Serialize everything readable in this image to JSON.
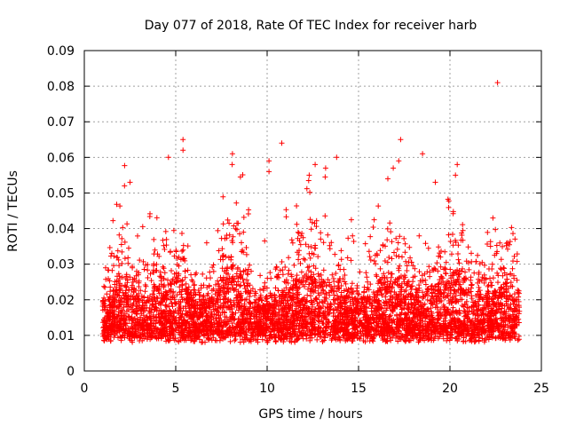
{
  "chart_data": {
    "type": "scatter",
    "title": "Day 077 of 2018, Rate Of TEC Index for receiver harb",
    "xlabel": "GPS time / hours",
    "ylabel": "ROTI / TECUs",
    "xlim": [
      0,
      25
    ],
    "ylim": [
      0,
      0.09
    ],
    "x_ticks": [
      "0",
      "5",
      "10",
      "15",
      "20",
      "25"
    ],
    "y_ticks": [
      "0",
      "0.01",
      "0.02",
      "0.03",
      "0.04",
      "0.05",
      "0.06",
      "0.07",
      "0.08",
      "0.09"
    ],
    "grid": true,
    "marker": "+",
    "color": "#ff0000",
    "series": [
      {
        "name": "ROTI",
        "x_range": [
          1.0,
          23.8
        ],
        "typical_y_range": [
          0.004,
          0.035
        ],
        "notable_points": [
          {
            "x": 22.6,
            "y": 0.081
          },
          {
            "x": 5.4,
            "y": 0.065
          },
          {
            "x": 17.3,
            "y": 0.065
          },
          {
            "x": 10.8,
            "y": 0.064
          },
          {
            "x": 5.4,
            "y": 0.062
          },
          {
            "x": 8.1,
            "y": 0.061
          },
          {
            "x": 18.5,
            "y": 0.061
          },
          {
            "x": 4.6,
            "y": 0.06
          },
          {
            "x": 13.8,
            "y": 0.06
          },
          {
            "x": 10.1,
            "y": 0.059
          },
          {
            "x": 10.1,
            "y": 0.056
          },
          {
            "x": 17.2,
            "y": 0.059
          },
          {
            "x": 2.5,
            "y": 0.053
          },
          {
            "x": 2.2,
            "y": 0.052
          },
          {
            "x": 12.3,
            "y": 0.055
          },
          {
            "x": 16.6,
            "y": 0.054
          },
          {
            "x": 20.3,
            "y": 0.055
          },
          {
            "x": 19.2,
            "y": 0.053
          },
          {
            "x": 13.2,
            "y": 0.057
          },
          {
            "x": 16.9,
            "y": 0.057
          }
        ]
      }
    ]
  }
}
